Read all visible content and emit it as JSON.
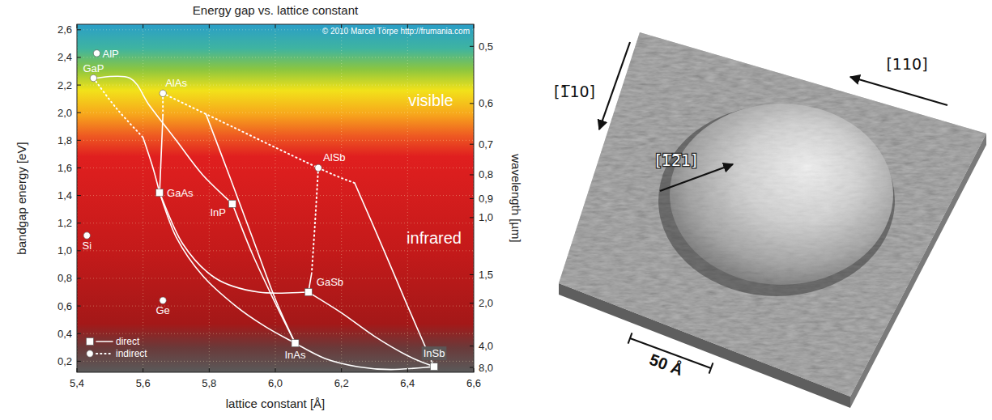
{
  "chart_data": {
    "type": "scatter",
    "title": "Energy gap vs. lattice constant",
    "x_label": "lattice constant [Å]",
    "y_label": "bandgap energy [eV]",
    "y2_label": "wavelength [µm]",
    "xlim": [
      5.4,
      6.6
    ],
    "xticks": [
      {
        "value": 5.4,
        "label": "5,4"
      },
      {
        "value": 5.6,
        "label": "5,6"
      },
      {
        "value": 5.8,
        "label": "5,8"
      },
      {
        "value": 6.0,
        "label": "6,0"
      },
      {
        "value": 6.2,
        "label": "6,2"
      },
      {
        "value": 6.4,
        "label": "6,4"
      },
      {
        "value": 6.6,
        "label": "6,6"
      }
    ],
    "ylim": [
      0.12,
      2.64
    ],
    "yticks": [
      {
        "value": 0.2,
        "label": "0,2"
      },
      {
        "value": 0.4,
        "label": "0,4"
      },
      {
        "value": 0.6,
        "label": "0,6"
      },
      {
        "value": 0.8,
        "label": "0,8"
      },
      {
        "value": 1.0,
        "label": "1,0"
      },
      {
        "value": 1.2,
        "label": "1,2"
      },
      {
        "value": 1.4,
        "label": "1,4"
      },
      {
        "value": 1.6,
        "label": "1,6"
      },
      {
        "value": 1.8,
        "label": "1,8"
      },
      {
        "value": 2.0,
        "label": "2,0"
      },
      {
        "value": 2.2,
        "label": "2,2"
      },
      {
        "value": 2.4,
        "label": "2,4"
      },
      {
        "value": 2.6,
        "label": "2,6"
      }
    ],
    "y2lim": [
      10.33,
      0.4697
    ],
    "y2ticks": [
      {
        "value": 0.5,
        "label": "0,5"
      },
      {
        "value": 0.6,
        "label": "0,6"
      },
      {
        "value": 0.7,
        "label": "0,7"
      },
      {
        "value": 0.8,
        "label": "0,8"
      },
      {
        "value": 0.9,
        "label": "0,9"
      },
      {
        "value": 1.0,
        "label": "1,0"
      },
      {
        "value": 1.5,
        "label": "1,5"
      },
      {
        "value": 2.0,
        "label": "2,0"
      },
      {
        "value": 4.0,
        "label": "4,0"
      },
      {
        "value": 8.0,
        "label": "8,0"
      }
    ],
    "grid": true,
    "legend": "bottom left",
    "series": [
      {
        "name": "direct",
        "marker": "square",
        "line_style": "solid",
        "color": "#ffffff",
        "x": [
          5.65,
          5.87,
          6.1,
          6.06,
          6.48
        ],
        "values": [
          1.42,
          1.34,
          0.7,
          0.33,
          0.16
        ],
        "point_labels": [
          "GaAs",
          "InP",
          "GaSb",
          "InAs",
          "InSb"
        ]
      },
      {
        "name": "indirect",
        "marker": "circle",
        "line_style": "dotted",
        "color": "#ffffff",
        "x": [
          5.46,
          5.45,
          5.66,
          6.13,
          5.43,
          5.66
        ],
        "values": [
          2.43,
          2.25,
          2.14,
          1.6,
          1.11,
          0.64
        ],
        "point_labels": [
          "AlP",
          "GaP",
          "AlAs",
          "AlSb",
          "Si",
          "Ge"
        ]
      }
    ],
    "lines": [
      {
        "line_style": "dotted",
        "color": "#ffffff",
        "x": [
          5.45,
          5.52,
          5.6
        ],
        "values": [
          2.25,
          2.03,
          1.82
        ]
      },
      {
        "line_style": "solid",
        "color": "#ffffff",
        "x": [
          5.6,
          5.63,
          5.65
        ],
        "values": [
          1.82,
          1.6,
          1.42
        ]
      },
      {
        "line_style": "solid",
        "color": "#ffffff",
        "x": [
          5.45,
          5.56,
          5.62,
          5.7,
          5.78,
          5.87
        ],
        "values": [
          2.25,
          2.25,
          2.05,
          1.8,
          1.55,
          1.34
        ]
      },
      {
        "line_style": "dotted",
        "color": "#ffffff",
        "x": [
          5.66,
          5.66
        ],
        "values": [
          2.14,
          1.98
        ]
      },
      {
        "line_style": "solid",
        "color": "#ffffff",
        "x": [
          5.66,
          5.655,
          5.65
        ],
        "values": [
          1.98,
          1.7,
          1.42
        ]
      },
      {
        "line_style": "dotted",
        "color": "#ffffff",
        "x": [
          5.66,
          5.79,
          6.13,
          6.24
        ],
        "values": [
          2.14,
          1.99,
          1.6,
          1.49
        ]
      },
      {
        "line_style": "solid",
        "color": "#ffffff",
        "x": [
          6.24,
          6.32,
          6.4,
          6.48
        ],
        "values": [
          1.49,
          1.05,
          0.6,
          0.16
        ]
      },
      {
        "line_style": "solid",
        "color": "#ffffff",
        "x": [
          5.79,
          5.86,
          5.93,
          6.0,
          6.06
        ],
        "values": [
          1.99,
          1.55,
          1.1,
          0.65,
          0.33
        ]
      },
      {
        "line_style": "solid",
        "color": "#ffffff",
        "x": [
          5.87,
          5.93,
          6.0,
          6.06
        ],
        "values": [
          1.34,
          0.98,
          0.62,
          0.33
        ]
      },
      {
        "line_style": "solid",
        "color": "#ffffff",
        "x": [
          5.65,
          5.7,
          5.78,
          5.88,
          5.97,
          6.06
        ],
        "values": [
          1.42,
          1.1,
          0.82,
          0.6,
          0.45,
          0.33
        ]
      },
      {
        "line_style": "solid",
        "color": "#ffffff",
        "x": [
          5.65,
          5.72,
          5.82,
          5.95,
          6.1
        ],
        "values": [
          1.42,
          1.05,
          0.8,
          0.7,
          0.7
        ]
      },
      {
        "line_style": "dotted",
        "color": "#ffffff",
        "x": [
          6.13,
          6.12,
          6.11
        ],
        "values": [
          1.6,
          1.2,
          0.84
        ]
      },
      {
        "line_style": "solid",
        "color": "#ffffff",
        "x": [
          6.11,
          6.1
        ],
        "values": [
          0.84,
          0.7
        ]
      },
      {
        "line_style": "solid",
        "color": "#ffffff",
        "x": [
          6.1,
          6.2,
          6.3,
          6.4,
          6.48
        ],
        "values": [
          0.7,
          0.55,
          0.38,
          0.24,
          0.16
        ]
      },
      {
        "line_style": "solid",
        "color": "#ffffff",
        "x": [
          6.06,
          6.15,
          6.25,
          6.35,
          6.48
        ],
        "values": [
          0.33,
          0.22,
          0.16,
          0.14,
          0.16
        ]
      }
    ],
    "annotations": [
      {
        "text": "visible",
        "x": 6.47,
        "y": 2.05
      },
      {
        "text": "infrared",
        "x": 6.48,
        "y": 1.05
      }
    ],
    "credit": "© 2010 Marcel Törpe http://frumania.com"
  },
  "stm_image": {
    "directions": [
      "[1̅10]",
      "[110]",
      "[1̅2̅1]"
    ],
    "scale_bar": "50 Å"
  }
}
